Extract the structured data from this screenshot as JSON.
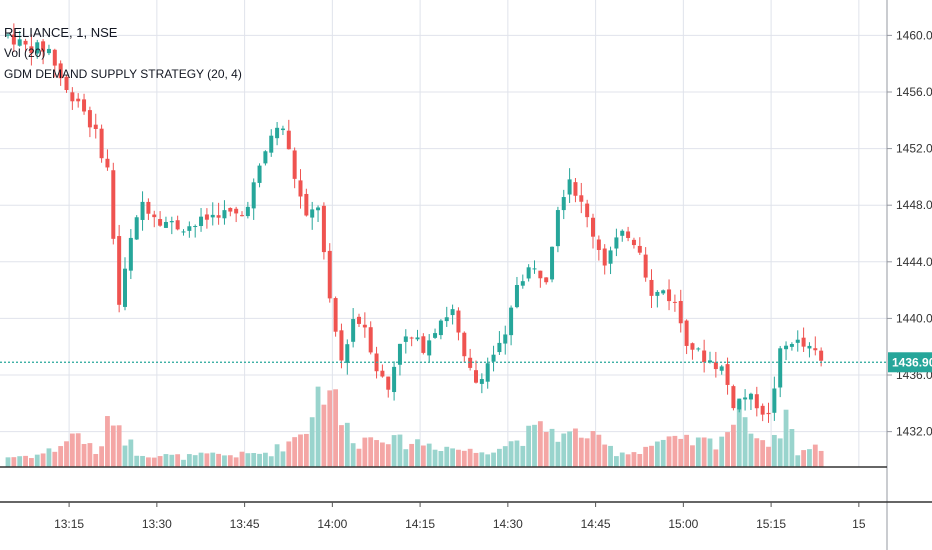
{
  "legend": {
    "symbol_line": "RELIANCE, 1, NSE",
    "volume_line": "Vol (20)",
    "strategy_line": "GDM DEMAND SUPPLY STRATEGY (20, 4)"
  },
  "colors": {
    "up": "#26a69a",
    "down": "#ef5350",
    "vol_up": "#99d4cd",
    "vol_down": "#f4a6a5",
    "grid": "#e0e3eb",
    "price_line": "#26a69a",
    "axis_line": "#555555"
  },
  "chart_data": {
    "type": "candlestick",
    "symbol": "RELIANCE",
    "interval": "1",
    "exchange": "NSE",
    "x_tick_labels": [
      "13:15",
      "13:30",
      "13:45",
      "14:00",
      "14:15",
      "14:30",
      "14:45",
      "15:00",
      "15:15",
      "15"
    ],
    "x_tick_index": [
      6,
      21,
      36,
      51,
      66,
      81,
      96,
      111,
      126,
      141
    ],
    "y_tick_labels": [
      "1460.00",
      "1456.00",
      "1452.00",
      "1448.00",
      "1444.00",
      "1440.00",
      "1436.00",
      "1432.00"
    ],
    "y_ticks": [
      1460,
      1456,
      1452,
      1448,
      1444,
      1440,
      1436,
      1432
    ],
    "price_range": [
      1429.5,
      1462.5
    ],
    "last_price": 1436.9,
    "last_price_label": "1436.90",
    "volume_range": [
      0,
      100
    ],
    "waypoints": [
      [
        0,
        1460.0
      ],
      [
        3,
        1459.2
      ],
      [
        7,
        1459.0
      ],
      [
        10,
        1456.0
      ],
      [
        12,
        1455.5
      ],
      [
        15,
        1453.0
      ],
      [
        17,
        1450.5
      ],
      [
        19,
        1441.0
      ],
      [
        21,
        1445.5
      ],
      [
        23,
        1448.2
      ],
      [
        26,
        1447.0
      ],
      [
        29,
        1446.5
      ],
      [
        32,
        1446.6
      ],
      [
        36,
        1447.5
      ],
      [
        40,
        1447.2
      ],
      [
        43,
        1450.5
      ],
      [
        45,
        1453.0
      ],
      [
        47,
        1453.5
      ],
      [
        49,
        1450.0
      ],
      [
        51,
        1447.0
      ],
      [
        53,
        1448.0
      ],
      [
        55,
        1441.0
      ],
      [
        57,
        1437.0
      ],
      [
        59,
        1440.0
      ],
      [
        61,
        1439.5
      ],
      [
        63,
        1436.5
      ],
      [
        65,
        1435.0
      ],
      [
        67,
        1438.5
      ],
      [
        69,
        1438.5
      ],
      [
        71,
        1438.0
      ],
      [
        74,
        1440.0
      ],
      [
        76,
        1440.5
      ],
      [
        78,
        1437.0
      ],
      [
        80,
        1435.5
      ],
      [
        83,
        1437.5
      ],
      [
        85,
        1438.5
      ],
      [
        87,
        1442.5
      ],
      [
        89,
        1443.5
      ],
      [
        92,
        1443.0
      ],
      [
        94,
        1448.0
      ],
      [
        96,
        1450.0
      ],
      [
        98,
        1448.0
      ],
      [
        100,
        1446.0
      ],
      [
        102,
        1444.0
      ],
      [
        104,
        1445.5
      ],
      [
        106,
        1446.0
      ],
      [
        108,
        1445.0
      ],
      [
        110,
        1441.5
      ],
      [
        112,
        1442.0
      ],
      [
        114,
        1441.0
      ],
      [
        116,
        1438.5
      ],
      [
        118,
        1437.5
      ],
      [
        120,
        1437.0
      ],
      [
        122,
        1436.5
      ],
      [
        124,
        1434.0
      ],
      [
        126,
        1434.5
      ],
      [
        128,
        1434.0
      ],
      [
        130,
        1433.0
      ],
      [
        132,
        1437.5
      ],
      [
        134,
        1438.5
      ],
      [
        136,
        1438.0
      ],
      [
        138,
        1437.5
      ],
      [
        139,
        1436.9
      ]
    ],
    "volume_waypoints": [
      [
        0,
        10
      ],
      [
        5,
        12
      ],
      [
        8,
        18
      ],
      [
        12,
        35
      ],
      [
        15,
        12
      ],
      [
        16,
        25
      ],
      [
        18,
        55
      ],
      [
        20,
        30
      ],
      [
        22,
        15
      ],
      [
        25,
        12
      ],
      [
        30,
        10
      ],
      [
        35,
        12
      ],
      [
        40,
        12
      ],
      [
        45,
        15
      ],
      [
        48,
        25
      ],
      [
        51,
        40
      ],
      [
        53,
        75
      ],
      [
        55,
        85
      ],
      [
        57,
        45
      ],
      [
        60,
        25
      ],
      [
        64,
        35
      ],
      [
        66,
        25
      ],
      [
        70,
        25
      ],
      [
        75,
        20
      ],
      [
        80,
        15
      ],
      [
        85,
        22
      ],
      [
        88,
        30
      ],
      [
        92,
        40
      ],
      [
        95,
        30
      ],
      [
        98,
        35
      ],
      [
        101,
        25
      ],
      [
        104,
        15
      ],
      [
        107,
        15
      ],
      [
        111,
        25
      ],
      [
        115,
        25
      ],
      [
        118,
        25
      ],
      [
        121,
        25
      ],
      [
        124,
        45
      ],
      [
        126,
        60
      ],
      [
        128,
        30
      ],
      [
        131,
        25
      ],
      [
        133,
        55
      ],
      [
        135,
        15
      ],
      [
        139,
        20
      ]
    ]
  }
}
